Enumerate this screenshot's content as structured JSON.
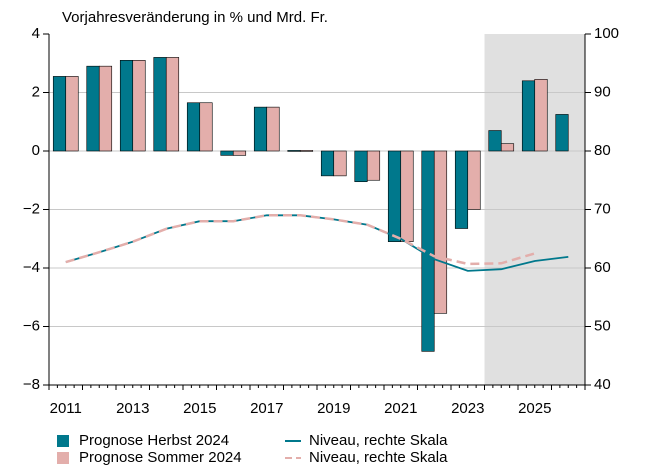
{
  "chart_data": {
    "type": "bar",
    "subtitle": "Vorjahresveränderung in % und Mrd. Fr.",
    "categories": [
      "2011",
      null,
      "2013",
      null,
      "2015",
      null,
      "2017",
      null,
      "2019",
      null,
      "2021",
      null,
      "2023",
      null,
      "2025",
      null
    ],
    "series": [
      {
        "name": "Prognose Herbst 2024",
        "type": "bar",
        "color": "#00788c",
        "values": [
          2.55,
          2.9,
          3.1,
          3.2,
          1.65,
          -0.15,
          1.5,
          0.02,
          -0.85,
          -1.05,
          -3.1,
          -6.85,
          -2.65,
          0.7,
          2.4,
          1.25
        ]
      },
      {
        "name": "Prognose Sommer 2024",
        "type": "bar",
        "color": "#e3aeab",
        "values": [
          2.55,
          2.9,
          3.1,
          3.2,
          1.65,
          -0.15,
          1.5,
          0.02,
          -0.85,
          -1.0,
          -3.1,
          -5.55,
          -2.0,
          0.25,
          2.45,
          null
        ]
      },
      {
        "name": "Niveau, rechte Skala",
        "type": "line",
        "axis": "y2",
        "color": "#00788c",
        "values": [
          61,
          62.7,
          64.5,
          66.7,
          68,
          68,
          69,
          69,
          68.3,
          67.4,
          65,
          61.5,
          59.5,
          59.8,
          61.2,
          61.9
        ]
      },
      {
        "name": "Niveau, rechte Skala",
        "type": "line",
        "axis": "y2",
        "dashed": true,
        "color": "#e3aeab",
        "values": [
          61,
          62.7,
          64.5,
          66.7,
          68,
          68,
          69,
          69,
          68.3,
          67.4,
          65,
          62,
          60.7,
          60.8,
          62.5,
          null
        ]
      }
    ],
    "ylim": [
      -8,
      4
    ],
    "yticks": [
      {
        "value": -8,
        "label": "−8"
      },
      {
        "value": -6,
        "label": "−6"
      },
      {
        "value": -4,
        "label": "−4"
      },
      {
        "value": -2,
        "label": "−2"
      },
      0,
      2,
      4
    ],
    "y2lim": [
      40,
      100
    ],
    "y2ticks": [
      40,
      50,
      60,
      70,
      80,
      90,
      100
    ],
    "grid": true
  }
}
